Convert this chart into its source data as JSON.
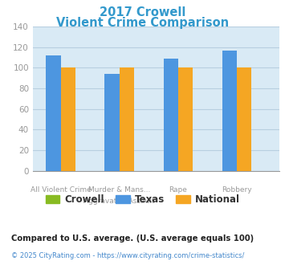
{
  "title_line1": "2017 Crowell",
  "title_line2": "Violent Crime Comparison",
  "title_color": "#3399cc",
  "cat_labels_row1": [
    "",
    "Murder & Mans...",
    "Rape",
    ""
  ],
  "cat_labels_row2": [
    "All Violent Crime",
    "Aggravated Assault",
    "",
    "Robbery"
  ],
  "crowell": [
    0,
    0,
    0,
    0
  ],
  "texas": [
    112,
    94,
    109,
    117
  ],
  "national": [
    100,
    100,
    100,
    100
  ],
  "crowell_color": "#88bb22",
  "texas_color": "#4d96e0",
  "national_color": "#f5a623",
  "ylim": [
    0,
    140
  ],
  "yticks": [
    0,
    20,
    40,
    60,
    80,
    100,
    120,
    140
  ],
  "bg_color": "#d9eaf5",
  "grid_color": "#b8cfe0",
  "tick_label_color": "#999999",
  "xlabel_color": "#999999",
  "footnote1": "Compared to U.S. average. (U.S. average equals 100)",
  "footnote2": "© 2025 CityRating.com - https://www.cityrating.com/crime-statistics/",
  "footnote1_color": "#222222",
  "footnote2_color": "#4488cc",
  "bar_width": 0.25
}
